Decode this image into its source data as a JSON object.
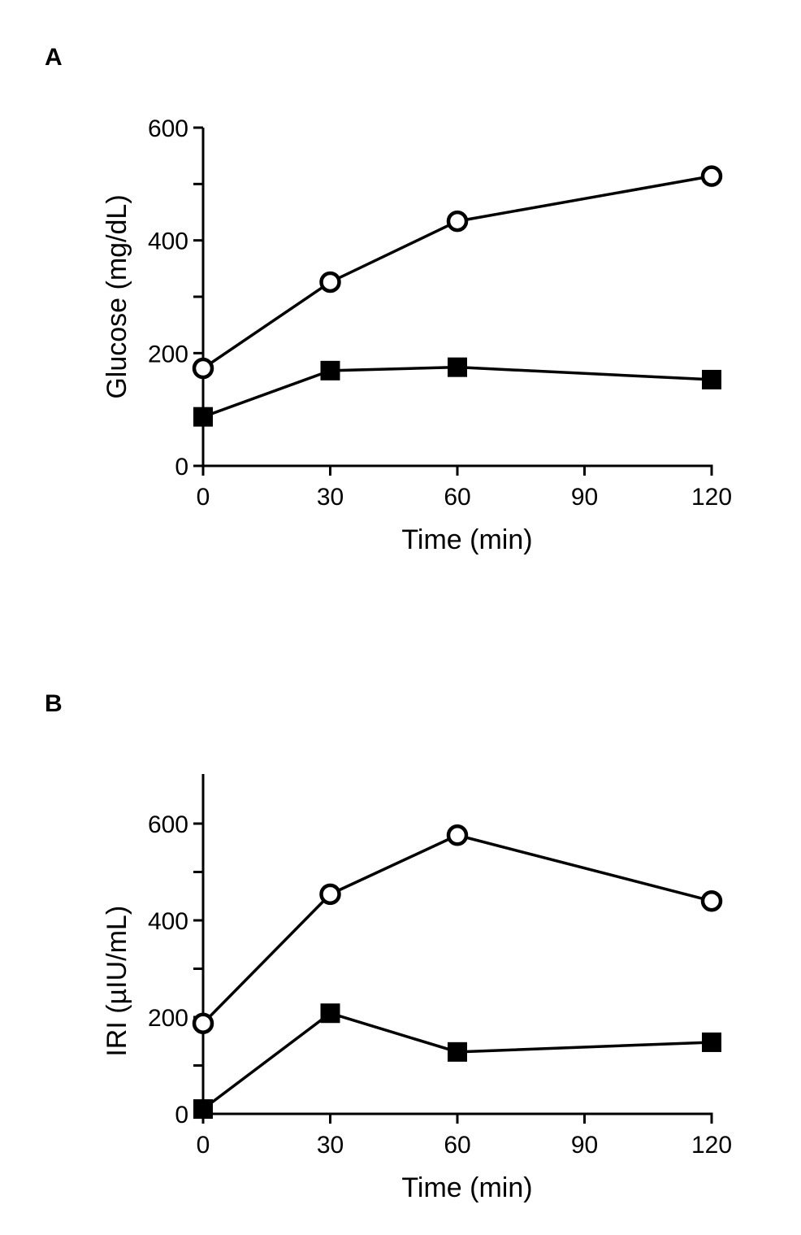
{
  "chart_data": [
    {
      "type": "line",
      "panel_label": "A",
      "xlabel": "Time (min)",
      "ylabel": "Glucose (mg/dL)",
      "x": [
        0,
        30,
        60,
        120
      ],
      "xticks": [
        0,
        30,
        60,
        90,
        120
      ],
      "yticks": [
        0,
        200,
        400,
        600
      ],
      "yminor": [
        100,
        300,
        500
      ],
      "xlim": [
        0,
        120
      ],
      "ylim": [
        0,
        600
      ],
      "grid": false,
      "series": [
        {
          "marker": "open-circle",
          "values": [
            173,
            326,
            434,
            514
          ]
        },
        {
          "marker": "filled-square",
          "values": [
            87,
            169,
            175,
            153
          ]
        }
      ]
    },
    {
      "type": "line",
      "panel_label": "B",
      "xlabel": "Time (min)",
      "ylabel": "IRI (µIU/mL)",
      "x": [
        0,
        30,
        60,
        120
      ],
      "xticks": [
        0,
        30,
        60,
        90,
        120
      ],
      "yticks": [
        0,
        200,
        400,
        600
      ],
      "yminor": [
        100,
        300,
        500
      ],
      "xlim": [
        0,
        120
      ],
      "ylim": [
        0,
        700
      ],
      "grid": false,
      "series": [
        {
          "marker": "open-circle",
          "values": [
            187,
            454,
            576,
            440
          ]
        },
        {
          "marker": "filled-square",
          "values": [
            10,
            208,
            128,
            148
          ]
        }
      ]
    }
  ]
}
